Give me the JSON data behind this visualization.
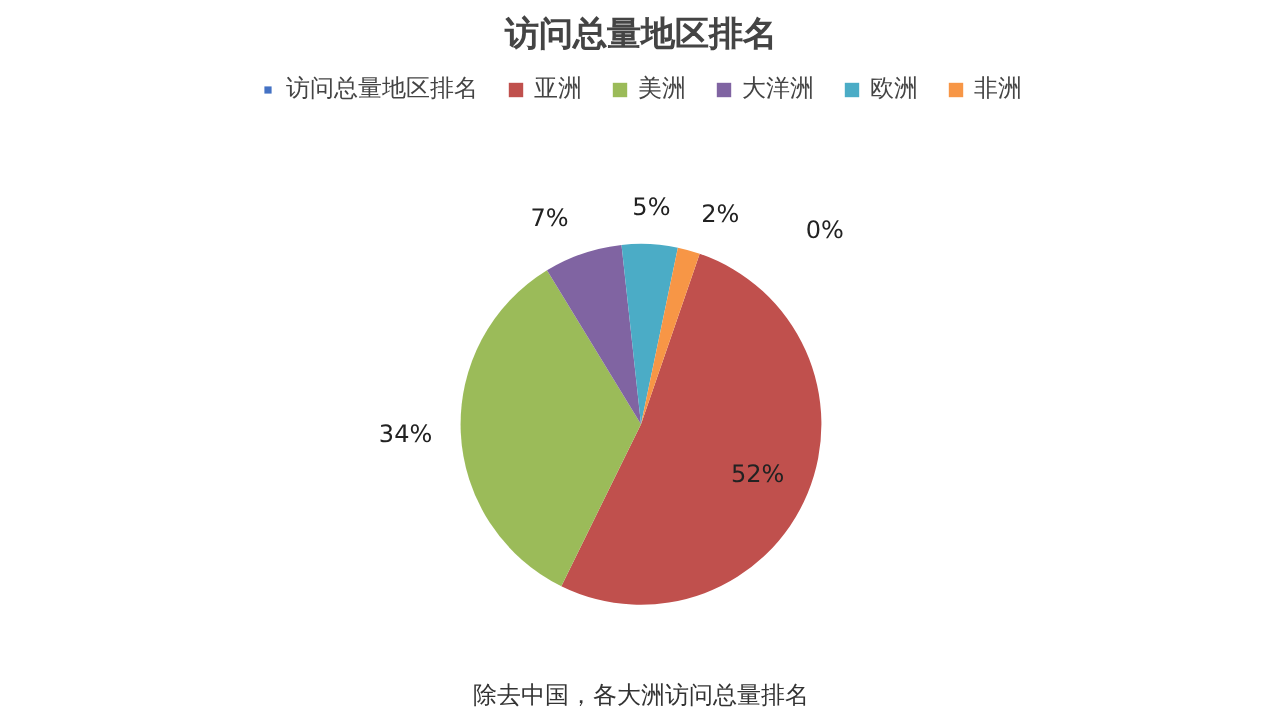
{
  "chart_data": {
    "type": "pie",
    "title": "访问总量地区排名",
    "categories": [
      "访问总量地区排名",
      "亚洲",
      "美洲",
      "大洋洲",
      "欧洲",
      "非洲"
    ],
    "values": [
      0,
      52,
      34,
      7,
      5,
      2
    ],
    "colors": [
      "#4472c4",
      "#c0504d",
      "#9bbb59",
      "#8064a2",
      "#4bacc6",
      "#f79646"
    ],
    "value_labels": [
      "0%",
      "52%",
      "34%",
      "7%",
      "5%",
      "2%"
    ],
    "legend": "top",
    "annotations": [
      "除去中国，各大洲访问总量排名"
    ]
  }
}
